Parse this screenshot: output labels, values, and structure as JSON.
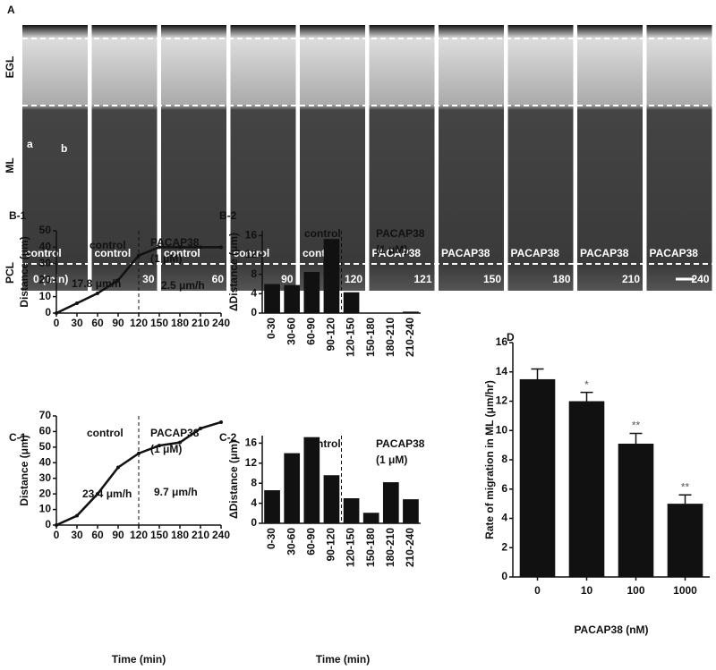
{
  "panel_a": {
    "label": "A",
    "layers": [
      "EGL",
      "ML",
      "PCL"
    ],
    "cell_labels": [
      "a",
      "b"
    ],
    "frames": [
      {
        "condition": "control",
        "time": "0 (min)"
      },
      {
        "condition": "control",
        "time": "30"
      },
      {
        "condition": "control",
        "time": "60"
      },
      {
        "condition": "control",
        "time": "90"
      },
      {
        "condition": "control",
        "time": "120"
      },
      {
        "condition": "PACAP38",
        "time": "121"
      },
      {
        "condition": "PACAP38",
        "time": "150"
      },
      {
        "condition": "PACAP38",
        "time": "180"
      },
      {
        "condition": "PACAP38",
        "time": "210"
      },
      {
        "condition": "PACAP38",
        "time": "240"
      }
    ]
  },
  "chart_data": [
    {
      "type": "line",
      "panel": "B-1",
      "x": [
        0,
        30,
        60,
        90,
        120,
        150,
        180,
        210,
        240
      ],
      "values": [
        0,
        6,
        12,
        20,
        35,
        40,
        40,
        40,
        40
      ],
      "color": "#111111",
      "xlim": [
        0,
        240
      ],
      "xticks": [
        0,
        30,
        60,
        90,
        120,
        150,
        180,
        210,
        240
      ],
      "ylim": [
        0,
        50
      ],
      "yticks": [
        0,
        10,
        20,
        30,
        40,
        50
      ],
      "y_label": "Distance (μm)",
      "divider_x": 120,
      "annotations": [
        "control",
        "PACAP38",
        "(1 μM)",
        "17.8 μm/h",
        "2.5 μm/h"
      ]
    },
    {
      "type": "bar",
      "panel": "B-2",
      "categories": [
        "0-30",
        "30-60",
        "60-90",
        "90-120",
        "120-150",
        "150-180",
        "180-210",
        "210-240"
      ],
      "values": [
        6,
        5.8,
        8.5,
        15.3,
        4.3,
        0,
        0,
        0.3
      ],
      "color": "#111111",
      "ylim": [
        0,
        17
      ],
      "yticks": [
        0,
        4,
        8,
        12,
        16
      ],
      "y_label": "ΔDistance (μm)",
      "annotations": [
        "control",
        "PACAP38",
        "(1 μM)"
      ]
    },
    {
      "type": "line",
      "panel": "C-1",
      "x": [
        0,
        30,
        60,
        90,
        120,
        150,
        180,
        210,
        240
      ],
      "values": [
        0,
        6,
        20,
        37,
        46,
        51,
        53,
        62,
        66
      ],
      "color": "#111111",
      "xlim": [
        0,
        240
      ],
      "xticks": [
        0,
        30,
        60,
        90,
        120,
        150,
        180,
        210,
        240
      ],
      "ylim": [
        0,
        70
      ],
      "yticks": [
        0,
        10,
        20,
        30,
        40,
        50,
        60,
        70
      ],
      "y_label": "Distance (μm)",
      "x_label": "Time (min)",
      "divider_x": 120,
      "annotations": [
        "control",
        "PACAP38",
        "(1 μM)",
        "23.4 μm/h",
        "9.7 μm/h"
      ]
    },
    {
      "type": "bar",
      "panel": "C-2",
      "categories": [
        "0-30",
        "30-60",
        "60-90",
        "90-120",
        "120-150",
        "150-180",
        "180-210",
        "210-240"
      ],
      "values": [
        6.6,
        14,
        17.2,
        9.6,
        5,
        2.1,
        8.2,
        4.8
      ],
      "color": "#111111",
      "ylim": [
        0,
        17.5
      ],
      "yticks": [
        0,
        4,
        8,
        12,
        16
      ],
      "y_label": "ΔDistance (μm)",
      "x_label": "Time (min)",
      "annotations": [
        "control",
        "PACAP38",
        "(1 μM)"
      ]
    },
    {
      "type": "errorbar",
      "panel": "D",
      "categories": [
        "0",
        "10",
        "100",
        "1000"
      ],
      "values": [
        13.5,
        12,
        9.1,
        5
      ],
      "errors": [
        0.7,
        0.6,
        0.7,
        0.6
      ],
      "significance": [
        null,
        "*",
        "**",
        "**"
      ],
      "color": "#111111",
      "ylim": [
        0,
        16
      ],
      "yticks": [
        0,
        2,
        4,
        6,
        8,
        10,
        12,
        14,
        16
      ],
      "y_label": "Rate of migration in ML (μm/hr)",
      "x_label": "PACAP38 (nM)"
    }
  ]
}
